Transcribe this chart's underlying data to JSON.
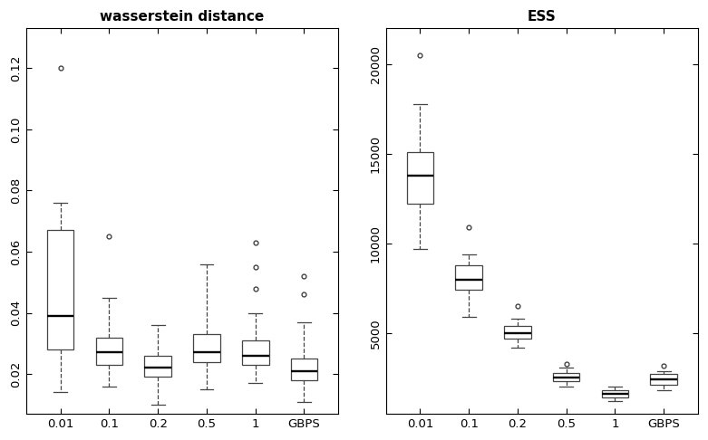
{
  "wasserstein": {
    "title": "wasserstein distance",
    "categories": [
      "0.01",
      "0.1",
      "0.2",
      "0.5",
      "1",
      "GBPS"
    ],
    "boxes": [
      {
        "q1": 0.028,
        "median": 0.039,
        "q3": 0.067,
        "whisker_lo": 0.014,
        "whisker_hi": 0.076,
        "fliers": [
          0.12
        ]
      },
      {
        "q1": 0.023,
        "median": 0.027,
        "q3": 0.032,
        "whisker_lo": 0.016,
        "whisker_hi": 0.045,
        "fliers": [
          0.065
        ]
      },
      {
        "q1": 0.019,
        "median": 0.022,
        "q3": 0.026,
        "whisker_lo": 0.01,
        "whisker_hi": 0.036,
        "fliers": []
      },
      {
        "q1": 0.024,
        "median": 0.027,
        "q3": 0.033,
        "whisker_lo": 0.015,
        "whisker_hi": 0.056,
        "fliers": []
      },
      {
        "q1": 0.023,
        "median": 0.026,
        "q3": 0.031,
        "whisker_lo": 0.017,
        "whisker_hi": 0.04,
        "fliers": [
          0.063,
          0.055,
          0.048
        ]
      },
      {
        "q1": 0.018,
        "median": 0.021,
        "q3": 0.025,
        "whisker_lo": 0.011,
        "whisker_hi": 0.037,
        "fliers": [
          0.052,
          0.046
        ]
      }
    ],
    "ylim": [
      0.007,
      0.133
    ],
    "yticks": [
      0.02,
      0.04,
      0.06,
      0.08,
      0.1,
      0.12
    ],
    "yticklabels": [
      "0.02",
      "0.04",
      "0.06",
      "0.08",
      "0.10",
      "0.12"
    ]
  },
  "ess": {
    "title": "ESS",
    "categories": [
      "0.01",
      "0.1",
      "0.2",
      "0.5",
      "1",
      "GBPS"
    ],
    "boxes": [
      {
        "q1": 12200,
        "median": 13800,
        "q3": 15100,
        "whisker_lo": 9700,
        "whisker_hi": 17800,
        "fliers": [
          20500
        ]
      },
      {
        "q1": 7400,
        "median": 8000,
        "q3": 8800,
        "whisker_lo": 5900,
        "whisker_hi": 9400,
        "fliers": [
          10900
        ]
      },
      {
        "q1": 4700,
        "median": 5000,
        "q3": 5400,
        "whisker_lo": 4200,
        "whisker_hi": 5800,
        "fliers": [
          6500
        ]
      },
      {
        "q1": 2300,
        "median": 2500,
        "q3": 2800,
        "whisker_lo": 2000,
        "whisker_hi": 3100,
        "fliers": [
          3300
        ]
      },
      {
        "q1": 1400,
        "median": 1600,
        "q3": 1800,
        "whisker_lo": 1200,
        "whisker_hi": 2000,
        "fliers": []
      },
      {
        "q1": 2100,
        "median": 2400,
        "q3": 2700,
        "whisker_lo": 1800,
        "whisker_hi": 2900,
        "fliers": [
          3200
        ]
      }
    ],
    "ylim": [
      500,
      22000
    ],
    "yticks": [
      5000,
      10000,
      15000,
      20000
    ],
    "yticklabels": [
      "5000",
      "10000",
      "15000",
      "20000"
    ]
  },
  "box_width": 0.55,
  "linewidth": 0.9,
  "flier_marker": "o",
  "flier_size": 3.5,
  "whisker_linestyle": "--",
  "bg_color": "#ffffff",
  "box_facecolor": "white",
  "box_edgecolor": "#444444",
  "median_color": "black",
  "whisker_color": "#444444",
  "cap_color": "#444444",
  "flier_color": "#444444",
  "title_fontsize": 11,
  "tick_fontsize": 9.5
}
